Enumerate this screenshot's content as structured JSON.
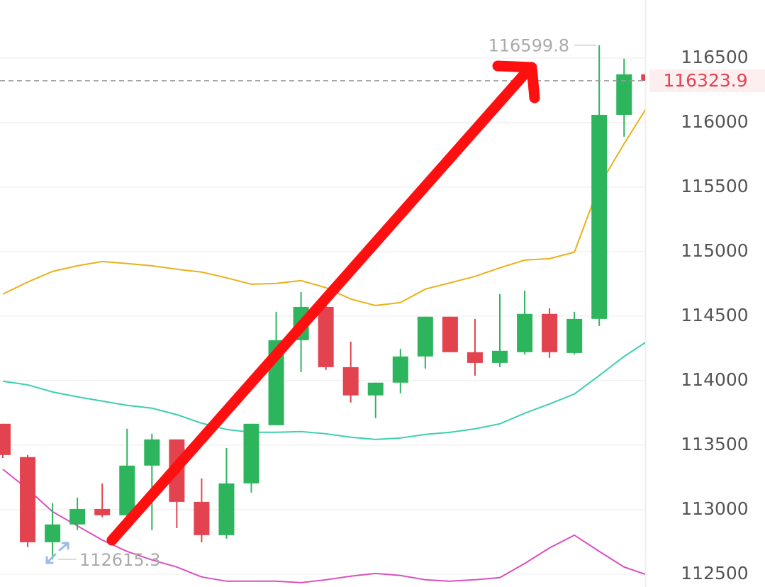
{
  "chart_data": {
    "type": "candlestick",
    "up_color": "#2db55d",
    "down_color": "#e2434f",
    "candles": [
      {
        "open": 113665,
        "high": 113665,
        "low": 113400,
        "close": 113423
      },
      {
        "open": 113407,
        "high": 113423,
        "low": 112709,
        "close": 112747
      },
      {
        "open": 112747,
        "high": 113049,
        "low": 112615.3,
        "close": 112885
      },
      {
        "open": 112885,
        "high": 113093,
        "low": 112841,
        "close": 113005
      },
      {
        "open": 113005,
        "high": 113203,
        "low": 112940,
        "close": 112956
      },
      {
        "open": 112956,
        "high": 113626,
        "low": 112940,
        "close": 113341
      },
      {
        "open": 113341,
        "high": 113588,
        "low": 112841,
        "close": 113544
      },
      {
        "open": 113544,
        "high": 113544,
        "low": 112857,
        "close": 113060
      },
      {
        "open": 113060,
        "high": 113242,
        "low": 112747,
        "close": 112802
      },
      {
        "open": 112802,
        "high": 113478,
        "low": 112775,
        "close": 113203
      },
      {
        "open": 113203,
        "high": 113665,
        "low": 113132,
        "close": 113665
      },
      {
        "open": 113654,
        "high": 114533,
        "low": 113654,
        "close": 114313
      },
      {
        "open": 114313,
        "high": 114687,
        "low": 114066,
        "close": 114571
      },
      {
        "open": 114571,
        "high": 114620,
        "low": 114082,
        "close": 114104
      },
      {
        "open": 114104,
        "high": 114302,
        "low": 113830,
        "close": 113885
      },
      {
        "open": 113885,
        "high": 113984,
        "low": 113709,
        "close": 113984
      },
      {
        "open": 113984,
        "high": 114247,
        "low": 113901,
        "close": 114187
      },
      {
        "open": 114187,
        "high": 114495,
        "low": 114093,
        "close": 114495
      },
      {
        "open": 114495,
        "high": 114495,
        "low": 114220,
        "close": 114220
      },
      {
        "open": 114220,
        "high": 114478,
        "low": 114038,
        "close": 114137
      },
      {
        "open": 114137,
        "high": 114670,
        "low": 114104,
        "close": 114231
      },
      {
        "open": 114220,
        "high": 114698,
        "low": 114203,
        "close": 114517
      },
      {
        "open": 114517,
        "high": 114560,
        "low": 114176,
        "close": 114220
      },
      {
        "open": 114214,
        "high": 114533,
        "low": 114203,
        "close": 114478
      },
      {
        "open": 114478,
        "high": 116599.8,
        "low": 114423,
        "close": 116060
      },
      {
        "open": 116060,
        "high": 116495,
        "low": 115890,
        "close": 116374
      },
      {
        "open": 116374,
        "high": 116374,
        "low": 116323.9,
        "close": 116323.9
      }
    ],
    "series": [
      {
        "color": "#e8b21c",
        "values": [
          114670,
          114764,
          114846,
          114890,
          114923,
          114907,
          114890,
          114863,
          114841,
          114797,
          114747,
          114753,
          114775,
          114720,
          114632,
          114582,
          114605,
          114709,
          114758,
          114808,
          114874,
          114934,
          114945,
          114995,
          115511,
          115836,
          116143
        ]
      },
      {
        "color": "#3ccfb0",
        "values": [
          113995,
          113967,
          113912,
          113874,
          113841,
          113808,
          113786,
          113736,
          113670,
          113621,
          113599,
          113599,
          113605,
          113588,
          113561,
          113544,
          113555,
          113583,
          113599,
          113626,
          113665,
          113747,
          113819,
          113896,
          114039,
          114187,
          114313
        ]
      },
      {
        "color": "#d94fc0",
        "values": [
          113313,
          113159,
          112984,
          112874,
          112764,
          112676,
          112610,
          112555,
          112478,
          112445,
          112445,
          112445,
          112434,
          112456,
          112484,
          112505,
          112489,
          112456,
          112445,
          112456,
          112473,
          112582,
          112703,
          112802,
          112676,
          112555,
          112489
        ]
      }
    ],
    "ylim": [
      112400,
      116950
    ],
    "yticks": [
      112500,
      113000,
      113500,
      114000,
      114500,
      115000,
      115500,
      116000,
      116500
    ],
    "grid": true
  }
}
